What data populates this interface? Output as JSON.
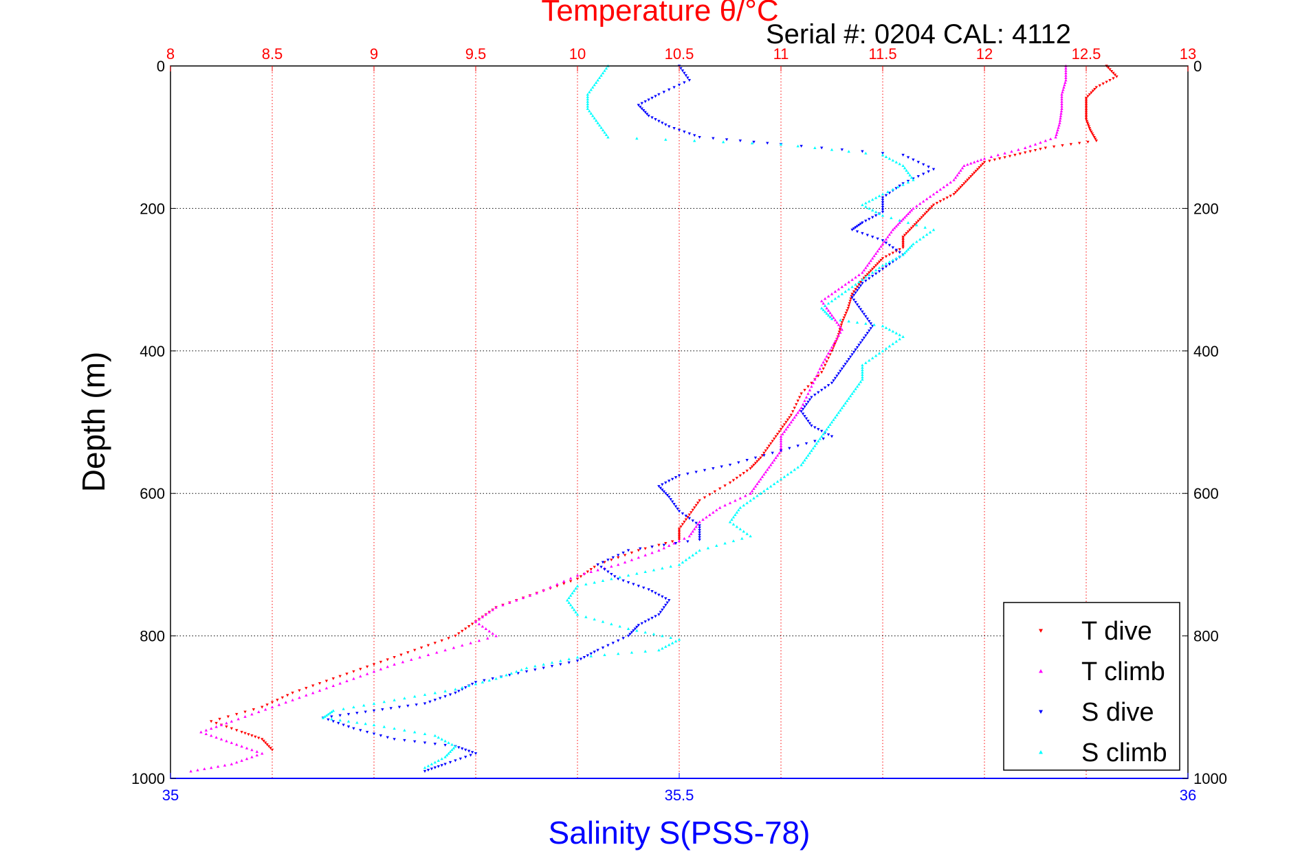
{
  "chart_data": {
    "type": "scatter",
    "title": "Temperature θ/°C",
    "subtitle": "Serial #: 0204  CAL: 4112",
    "xlabel": "Salinity S(PSS-78)",
    "ylabel": "Depth (m)",
    "x_bottom": {
      "lim": [
        35,
        36
      ],
      "ticks": [
        "35",
        "35.5",
        "36"
      ],
      "color": "#0000ff"
    },
    "x_top": {
      "lim": [
        8,
        13
      ],
      "ticks": [
        "8",
        "8.5",
        "9",
        "9.5",
        "10",
        "10.5",
        "11",
        "11.5",
        "12",
        "12.5",
        "13"
      ],
      "color": "#ff0000",
      "grid": true
    },
    "y": {
      "lim": [
        0,
        1000
      ],
      "reversed": true,
      "ticks": [
        "0",
        "200",
        "400",
        "600",
        "800",
        "1000"
      ],
      "grid": true
    },
    "legend_position": "bottom-right",
    "series": [
      {
        "name": "T dive",
        "axis": "top",
        "color": "#ff0000",
        "marker": "triangle-down",
        "points": [
          [
            12.6,
            0
          ],
          [
            12.65,
            15
          ],
          [
            12.55,
            30
          ],
          [
            12.5,
            45
          ],
          [
            12.5,
            60
          ],
          [
            12.5,
            75
          ],
          [
            12.52,
            90
          ],
          [
            12.55,
            105
          ],
          [
            12.3,
            115
          ],
          [
            12.15,
            125
          ],
          [
            12.0,
            135
          ],
          [
            11.95,
            150
          ],
          [
            11.9,
            165
          ],
          [
            11.85,
            180
          ],
          [
            11.75,
            195
          ],
          [
            11.7,
            210
          ],
          [
            11.65,
            225
          ],
          [
            11.6,
            240
          ],
          [
            11.6,
            255
          ],
          [
            11.5,
            270
          ],
          [
            11.45,
            285
          ],
          [
            11.4,
            300
          ],
          [
            11.35,
            320
          ],
          [
            11.33,
            340
          ],
          [
            11.3,
            360
          ],
          [
            11.28,
            380
          ],
          [
            11.25,
            400
          ],
          [
            11.2,
            430
          ],
          [
            11.1,
            460
          ],
          [
            11.05,
            490
          ],
          [
            11.0,
            510
          ],
          [
            10.95,
            530
          ],
          [
            10.9,
            550
          ],
          [
            10.85,
            565
          ],
          [
            10.75,
            585
          ],
          [
            10.6,
            610
          ],
          [
            10.55,
            630
          ],
          [
            10.5,
            650
          ],
          [
            10.5,
            665
          ],
          [
            10.3,
            680
          ],
          [
            10.1,
            700
          ],
          [
            10.0,
            720
          ],
          [
            9.8,
            740
          ],
          [
            9.6,
            760
          ],
          [
            9.5,
            780
          ],
          [
            9.4,
            800
          ],
          [
            9.2,
            820
          ],
          [
            9.0,
            840
          ],
          [
            8.8,
            860
          ],
          [
            8.6,
            880
          ],
          [
            8.45,
            900
          ],
          [
            8.2,
            920
          ],
          [
            8.35,
            935
          ],
          [
            8.45,
            945
          ],
          [
            8.5,
            960
          ]
        ]
      },
      {
        "name": "T climb",
        "axis": "top",
        "color": "#ff00ff",
        "marker": "triangle-up",
        "points": [
          [
            12.4,
            0
          ],
          [
            12.4,
            20
          ],
          [
            12.38,
            40
          ],
          [
            12.38,
            60
          ],
          [
            12.37,
            80
          ],
          [
            12.35,
            100
          ],
          [
            12.2,
            115
          ],
          [
            12.0,
            130
          ],
          [
            11.9,
            140
          ],
          [
            11.85,
            160
          ],
          [
            11.75,
            180
          ],
          [
            11.65,
            200
          ],
          [
            11.6,
            215
          ],
          [
            11.55,
            230
          ],
          [
            11.5,
            250
          ],
          [
            11.45,
            270
          ],
          [
            11.4,
            290
          ],
          [
            11.3,
            310
          ],
          [
            11.2,
            330
          ],
          [
            11.25,
            350
          ],
          [
            11.3,
            370
          ],
          [
            11.25,
            395
          ],
          [
            11.2,
            420
          ],
          [
            11.15,
            450
          ],
          [
            11.1,
            480
          ],
          [
            11.05,
            500
          ],
          [
            11.0,
            520
          ],
          [
            11.0,
            540
          ],
          [
            10.95,
            560
          ],
          [
            10.9,
            580
          ],
          [
            10.85,
            600
          ],
          [
            10.7,
            620
          ],
          [
            10.6,
            640
          ],
          [
            10.55,
            660
          ],
          [
            10.4,
            680
          ],
          [
            10.2,
            700
          ],
          [
            10.0,
            715
          ],
          [
            9.8,
            740
          ],
          [
            9.6,
            760
          ],
          [
            9.5,
            780
          ],
          [
            9.6,
            800
          ],
          [
            9.35,
            820
          ],
          [
            9.1,
            840
          ],
          [
            8.9,
            860
          ],
          [
            8.7,
            880
          ],
          [
            8.5,
            900
          ],
          [
            8.3,
            920
          ],
          [
            8.15,
            935
          ],
          [
            8.3,
            950
          ],
          [
            8.45,
            965
          ],
          [
            8.3,
            980
          ],
          [
            8.1,
            990
          ]
        ]
      },
      {
        "name": "S dive",
        "axis": "bottom",
        "color": "#0000ff",
        "marker": "triangle-down",
        "points": [
          [
            35.5,
            0
          ],
          [
            35.51,
            20
          ],
          [
            35.48,
            40
          ],
          [
            35.46,
            55
          ],
          [
            35.47,
            70
          ],
          [
            35.49,
            85
          ],
          [
            35.52,
            100
          ],
          [
            35.6,
            110
          ],
          [
            35.72,
            125
          ],
          [
            35.75,
            145
          ],
          [
            35.72,
            165
          ],
          [
            35.7,
            185
          ],
          [
            35.7,
            205
          ],
          [
            35.68,
            220
          ],
          [
            35.67,
            230
          ],
          [
            35.7,
            245
          ],
          [
            35.72,
            265
          ],
          [
            35.7,
            285
          ],
          [
            35.68,
            305
          ],
          [
            35.67,
            325
          ],
          [
            35.68,
            345
          ],
          [
            35.69,
            365
          ],
          [
            35.68,
            385
          ],
          [
            35.67,
            405
          ],
          [
            35.66,
            425
          ],
          [
            35.65,
            445
          ],
          [
            35.63,
            465
          ],
          [
            35.62,
            485
          ],
          [
            35.63,
            505
          ],
          [
            35.65,
            520
          ],
          [
            35.6,
            540
          ],
          [
            35.55,
            560
          ],
          [
            35.5,
            575
          ],
          [
            35.48,
            590
          ],
          [
            35.49,
            605
          ],
          [
            35.5,
            625
          ],
          [
            35.52,
            645
          ],
          [
            35.52,
            665
          ],
          [
            35.45,
            680
          ],
          [
            35.42,
            700
          ],
          [
            35.44,
            720
          ],
          [
            35.47,
            735
          ],
          [
            35.49,
            750
          ],
          [
            35.48,
            770
          ],
          [
            35.46,
            785
          ],
          [
            35.45,
            800
          ],
          [
            35.42,
            820
          ],
          [
            35.4,
            835
          ],
          [
            35.35,
            850
          ],
          [
            35.3,
            865
          ],
          [
            35.28,
            880
          ],
          [
            35.25,
            895
          ],
          [
            35.2,
            905
          ],
          [
            35.15,
            915
          ],
          [
            35.18,
            930
          ],
          [
            35.22,
            945
          ],
          [
            35.28,
            955
          ],
          [
            35.3,
            965
          ],
          [
            35.27,
            980
          ],
          [
            35.25,
            990
          ]
        ]
      },
      {
        "name": "S climb",
        "axis": "bottom",
        "color": "#00ffff",
        "marker": "triangle-up",
        "points": [
          [
            35.43,
            0
          ],
          [
            35.42,
            20
          ],
          [
            35.41,
            40
          ],
          [
            35.41,
            60
          ],
          [
            35.42,
            80
          ],
          [
            35.43,
            100
          ],
          [
            35.6,
            110
          ],
          [
            35.7,
            125
          ],
          [
            35.72,
            140
          ],
          [
            35.73,
            160
          ],
          [
            35.7,
            180
          ],
          [
            35.68,
            195
          ],
          [
            35.7,
            210
          ],
          [
            35.75,
            230
          ],
          [
            35.73,
            250
          ],
          [
            35.72,
            265
          ],
          [
            35.7,
            280
          ],
          [
            35.68,
            300
          ],
          [
            35.66,
            320
          ],
          [
            35.64,
            340
          ],
          [
            35.65,
            355
          ],
          [
            35.7,
            365
          ],
          [
            35.72,
            380
          ],
          [
            35.7,
            400
          ],
          [
            35.68,
            420
          ],
          [
            35.68,
            440
          ],
          [
            35.67,
            460
          ],
          [
            35.66,
            480
          ],
          [
            35.65,
            500
          ],
          [
            35.64,
            520
          ],
          [
            35.63,
            540
          ],
          [
            35.62,
            560
          ],
          [
            35.6,
            580
          ],
          [
            35.58,
            600
          ],
          [
            35.56,
            620
          ],
          [
            35.55,
            640
          ],
          [
            35.57,
            660
          ],
          [
            35.52,
            680
          ],
          [
            35.5,
            700
          ],
          [
            35.45,
            715
          ],
          [
            35.4,
            730
          ],
          [
            35.39,
            750
          ],
          [
            35.4,
            770
          ],
          [
            35.45,
            790
          ],
          [
            35.5,
            805
          ],
          [
            35.48,
            820
          ],
          [
            35.4,
            830
          ],
          [
            35.35,
            845
          ],
          [
            35.32,
            860
          ],
          [
            35.28,
            875
          ],
          [
            35.22,
            890
          ],
          [
            35.16,
            905
          ],
          [
            35.15,
            915
          ],
          [
            35.2,
            925
          ],
          [
            35.26,
            940
          ],
          [
            35.28,
            955
          ],
          [
            35.27,
            970
          ],
          [
            35.25,
            985
          ]
        ]
      }
    ]
  }
}
